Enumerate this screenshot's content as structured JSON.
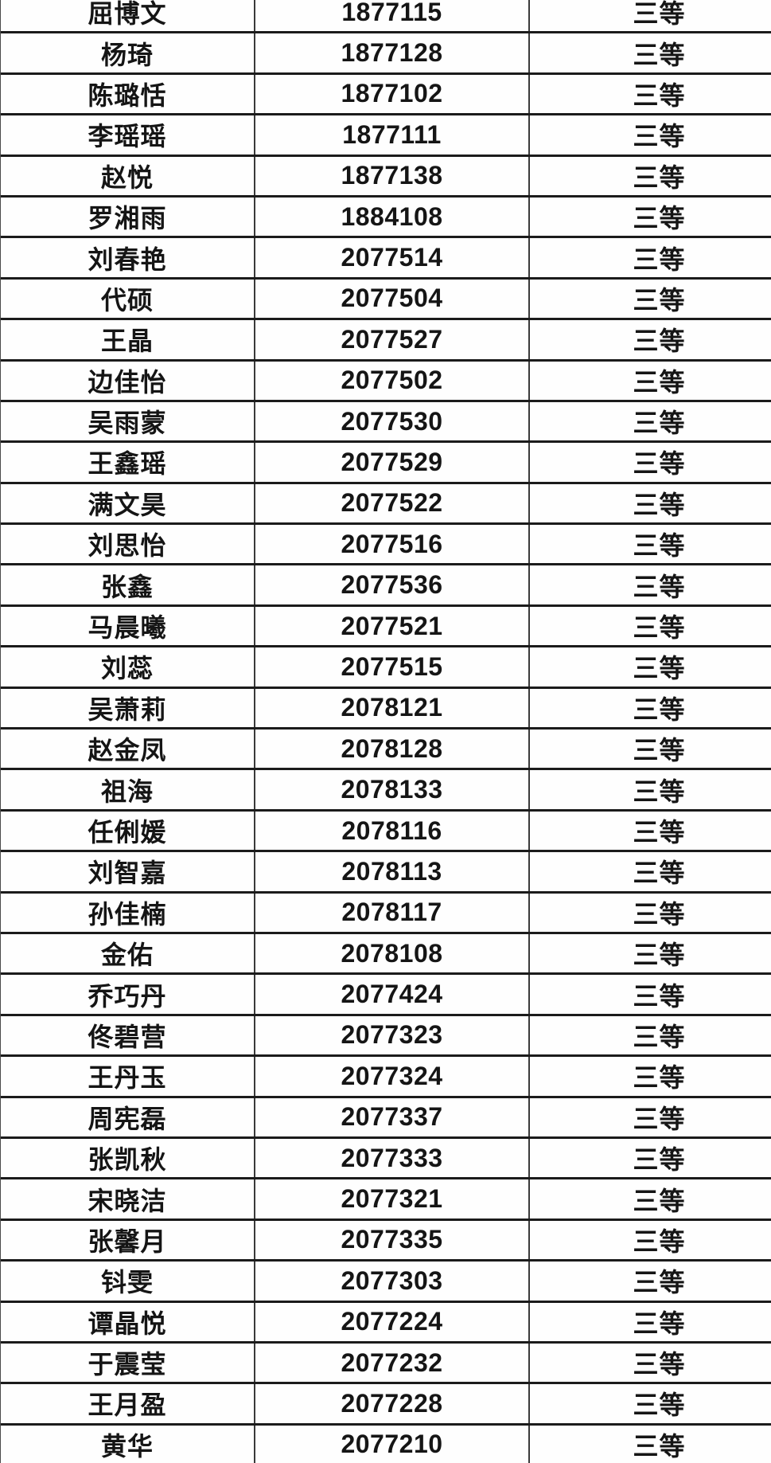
{
  "colors": {
    "background": "#fdfdfd",
    "row_background": "#fefefe",
    "horizontal_border": "#1b1b1b",
    "vertical_border": "#3a3a3a",
    "text": "#151515"
  },
  "table": {
    "rows": [
      {
        "name": "屈博文",
        "student_id": "1877115",
        "grade": "三等"
      },
      {
        "name": "杨琦",
        "student_id": "1877128",
        "grade": "三等"
      },
      {
        "name": "陈璐恬",
        "student_id": "1877102",
        "grade": "三等"
      },
      {
        "name": "李瑶瑶",
        "student_id": "1877111",
        "grade": "三等"
      },
      {
        "name": "赵悦",
        "student_id": "1877138",
        "grade": "三等"
      },
      {
        "name": "罗湘雨",
        "student_id": "1884108",
        "grade": "三等"
      },
      {
        "name": "刘春艳",
        "student_id": "2077514",
        "grade": "三等"
      },
      {
        "name": "代硕",
        "student_id": "2077504",
        "grade": "三等"
      },
      {
        "name": "王晶",
        "student_id": "2077527",
        "grade": "三等"
      },
      {
        "name": "边佳怡",
        "student_id": "2077502",
        "grade": "三等"
      },
      {
        "name": "吴雨蒙",
        "student_id": "2077530",
        "grade": "三等"
      },
      {
        "name": "王鑫瑶",
        "student_id": "2077529",
        "grade": "三等"
      },
      {
        "name": "满文昊",
        "student_id": "2077522",
        "grade": "三等"
      },
      {
        "name": "刘思怡",
        "student_id": "2077516",
        "grade": "三等"
      },
      {
        "name": "张鑫",
        "student_id": "2077536",
        "grade": "三等"
      },
      {
        "name": "马晨曦",
        "student_id": "2077521",
        "grade": "三等"
      },
      {
        "name": "刘蕊",
        "student_id": "2077515",
        "grade": "三等"
      },
      {
        "name": "吴萧莉",
        "student_id": "2078121",
        "grade": "三等"
      },
      {
        "name": "赵金凤",
        "student_id": "2078128",
        "grade": "三等"
      },
      {
        "name": "祖海",
        "student_id": "2078133",
        "grade": "三等"
      },
      {
        "name": "任俐媛",
        "student_id": "2078116",
        "grade": "三等"
      },
      {
        "name": "刘智嘉",
        "student_id": "2078113",
        "grade": "三等"
      },
      {
        "name": "孙佳楠",
        "student_id": "2078117",
        "grade": "三等"
      },
      {
        "name": "金佑",
        "student_id": "2078108",
        "grade": "三等"
      },
      {
        "name": "乔巧丹",
        "student_id": "2077424",
        "grade": "三等"
      },
      {
        "name": "佟碧营",
        "student_id": "2077323",
        "grade": "三等"
      },
      {
        "name": "王丹玉",
        "student_id": "2077324",
        "grade": "三等"
      },
      {
        "name": "周宪磊",
        "student_id": "2077337",
        "grade": "三等"
      },
      {
        "name": "张凯秋",
        "student_id": "2077333",
        "grade": "三等"
      },
      {
        "name": "宋晓洁",
        "student_id": "2077321",
        "grade": "三等"
      },
      {
        "name": "张馨月",
        "student_id": "2077335",
        "grade": "三等"
      },
      {
        "name": "钭雯",
        "student_id": "2077303",
        "grade": "三等"
      },
      {
        "name": "谭晶悦",
        "student_id": "2077224",
        "grade": "三等"
      },
      {
        "name": "于震莹",
        "student_id": "2077232",
        "grade": "三等"
      },
      {
        "name": "王月盈",
        "student_id": "2077228",
        "grade": "三等"
      },
      {
        "name": "黄华",
        "student_id": "2077210",
        "grade": "三等"
      }
    ]
  }
}
